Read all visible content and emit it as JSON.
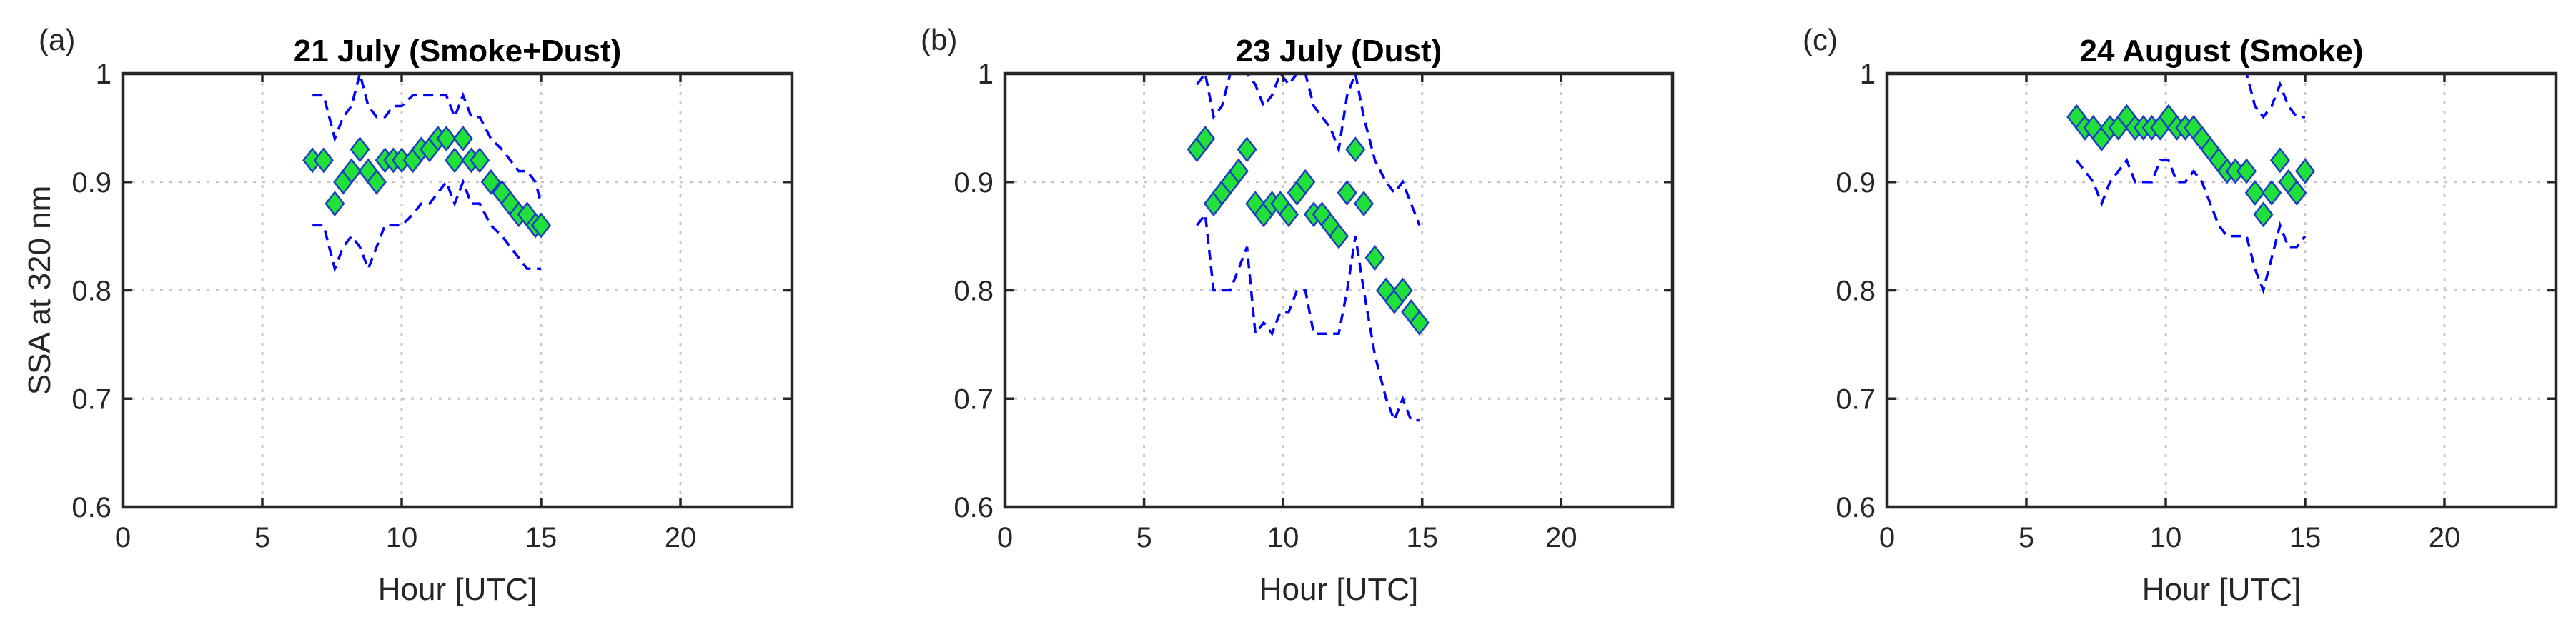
{
  "colors": {
    "marker_fill": "#22e03a",
    "marker_edge": "#1a3fc0",
    "band_line": "#0000ff",
    "grid": "#c8c8c8"
  },
  "chart_data": [
    {
      "panel": "(a)",
      "type": "scatter",
      "title": "21 July (Smoke+Dust)",
      "xlabel": "Hour [UTC]",
      "ylabel": "SSA at 320 nm",
      "xlim": [
        0,
        24
      ],
      "ylim": [
        0.6,
        1
      ],
      "xticks": [
        "0",
        "5",
        "10",
        "15",
        "20"
      ],
      "yticks": [
        "0.6",
        "0.7",
        "0.8",
        "0.9",
        "1"
      ],
      "grid": true,
      "x": [
        6.8,
        7.2,
        7.6,
        7.9,
        8.2,
        8.5,
        8.8,
        9.1,
        9.4,
        9.7,
        10.0,
        10.4,
        10.7,
        11.0,
        11.3,
        11.6,
        11.9,
        12.2,
        12.5,
        12.8,
        13.2,
        13.6,
        13.9,
        14.2,
        14.5,
        14.8,
        15.0
      ],
      "y": [
        0.92,
        0.92,
        0.88,
        0.9,
        0.91,
        0.93,
        0.91,
        0.9,
        0.92,
        0.92,
        0.92,
        0.92,
        0.93,
        0.93,
        0.94,
        0.94,
        0.92,
        0.94,
        0.92,
        0.92,
        0.9,
        0.89,
        0.88,
        0.87,
        0.87,
        0.86,
        0.86
      ],
      "upper": [
        0.98,
        0.98,
        0.94,
        0.96,
        0.97,
        1.0,
        0.97,
        0.96,
        0.96,
        0.97,
        0.97,
        0.98,
        0.98,
        0.98,
        0.98,
        0.98,
        0.96,
        0.98,
        0.96,
        0.96,
        0.94,
        0.93,
        0.92,
        0.91,
        0.91,
        0.9,
        0.88
      ],
      "lower": [
        0.86,
        0.86,
        0.82,
        0.84,
        0.85,
        0.84,
        0.82,
        0.84,
        0.86,
        0.86,
        0.86,
        0.87,
        0.88,
        0.88,
        0.89,
        0.9,
        0.88,
        0.9,
        0.88,
        0.88,
        0.86,
        0.85,
        0.84,
        0.83,
        0.82,
        0.82,
        0.82
      ]
    },
    {
      "panel": "(b)",
      "type": "scatter",
      "title": "23 July (Dust)",
      "xlabel": "Hour [UTC]",
      "ylabel": "",
      "xlim": [
        0,
        24
      ],
      "ylim": [
        0.6,
        1
      ],
      "xticks": [
        "0",
        "5",
        "10",
        "15",
        "20"
      ],
      "yticks": [
        "0.6",
        "0.7",
        "0.8",
        "0.9",
        "1"
      ],
      "grid": true,
      "x": [
        6.9,
        7.2,
        7.5,
        7.8,
        8.1,
        8.4,
        8.7,
        9.0,
        9.3,
        9.6,
        9.9,
        10.2,
        10.5,
        10.8,
        11.1,
        11.4,
        11.7,
        12.0,
        12.3,
        12.6,
        12.9,
        13.3,
        13.7,
        14.0,
        14.3,
        14.6,
        14.9
      ],
      "y": [
        0.93,
        0.94,
        0.88,
        0.89,
        0.9,
        0.91,
        0.93,
        0.88,
        0.87,
        0.88,
        0.88,
        0.87,
        0.89,
        0.9,
        0.87,
        0.87,
        0.86,
        0.85,
        0.89,
        0.93,
        0.88,
        0.83,
        0.8,
        0.79,
        0.8,
        0.78,
        0.77
      ],
      "upper": [
        0.99,
        1.0,
        0.96,
        0.97,
        1.0,
        1.0,
        1.0,
        0.99,
        0.97,
        0.98,
        1.0,
        0.99,
        1.0,
        1.0,
        0.97,
        0.96,
        0.95,
        0.93,
        0.98,
        1.0,
        0.96,
        0.92,
        0.9,
        0.89,
        0.9,
        0.88,
        0.86
      ],
      "lower": [
        0.86,
        0.87,
        0.8,
        0.8,
        0.8,
        0.82,
        0.84,
        0.76,
        0.77,
        0.76,
        0.78,
        0.78,
        0.8,
        0.8,
        0.76,
        0.76,
        0.76,
        0.76,
        0.8,
        0.85,
        0.8,
        0.74,
        0.7,
        0.68,
        0.7,
        0.68,
        0.68
      ]
    },
    {
      "panel": "(c)",
      "type": "scatter",
      "title": "24 August (Smoke)",
      "xlabel": "Hour [UTC]",
      "ylabel": "",
      "xlim": [
        0,
        24
      ],
      "ylim": [
        0.6,
        1
      ],
      "xticks": [
        "0",
        "5",
        "10",
        "15",
        "20"
      ],
      "yticks": [
        "0.6",
        "0.7",
        "0.8",
        "0.9",
        "1"
      ],
      "grid": true,
      "x": [
        6.8,
        7.1,
        7.4,
        7.7,
        8.0,
        8.3,
        8.6,
        8.9,
        9.2,
        9.5,
        9.8,
        10.1,
        10.4,
        10.7,
        11.0,
        11.3,
        11.6,
        11.9,
        12.2,
        12.5,
        12.9,
        13.2,
        13.5,
        13.8,
        14.1,
        14.4,
        14.7,
        15.0
      ],
      "y": [
        0.96,
        0.95,
        0.95,
        0.94,
        0.95,
        0.95,
        0.96,
        0.95,
        0.95,
        0.95,
        0.95,
        0.96,
        0.95,
        0.95,
        0.95,
        0.94,
        0.93,
        0.92,
        0.91,
        0.91,
        0.91,
        0.89,
        0.87,
        0.89,
        0.92,
        0.9,
        0.89,
        0.91
      ],
      "upper": [
        1.0,
        1.0,
        1.0,
        1.0,
        1.0,
        1.0,
        1.0,
        1.0,
        1.0,
        1.0,
        1.0,
        1.0,
        1.0,
        1.0,
        1.0,
        1.0,
        1.0,
        1.0,
        1.0,
        1.0,
        1.0,
        0.97,
        0.96,
        0.97,
        0.99,
        0.97,
        0.96,
        0.96
      ],
      "lower": [
        0.92,
        0.91,
        0.9,
        0.88,
        0.9,
        0.91,
        0.92,
        0.9,
        0.9,
        0.9,
        0.92,
        0.92,
        0.9,
        0.9,
        0.91,
        0.9,
        0.88,
        0.86,
        0.85,
        0.85,
        0.85,
        0.82,
        0.8,
        0.83,
        0.86,
        0.84,
        0.84,
        0.85
      ]
    }
  ]
}
